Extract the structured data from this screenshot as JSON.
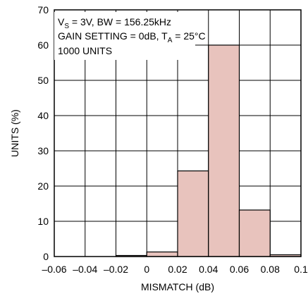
{
  "chart_data": {
    "type": "bar",
    "title": "",
    "xlabel": "MISMATCH (dB)",
    "ylabel": "UNITS (%)",
    "xlim": [
      -0.06,
      0.1
    ],
    "ylim": [
      0,
      70
    ],
    "grid": true,
    "bar_width": 0.02,
    "colors": {
      "bar_fill": "#e8c3bd",
      "bar_stroke": "#000000",
      "grid": "#000000"
    },
    "x": [
      -0.03,
      -0.01,
      0.01,
      0.03,
      0.05,
      0.07,
      0.09
    ],
    "values": [
      0,
      0.3,
      1.3,
      24.3,
      60,
      13.2,
      0.5
    ],
    "x_ticks": [
      -0.06,
      -0.04,
      -0.02,
      0,
      0.02,
      0.04,
      0.06,
      0.08,
      0.1
    ],
    "x_tick_labels": [
      "–0.06",
      "–0.04",
      "–0.02",
      "0",
      "0.02",
      "0.04",
      "0.06",
      "0.08",
      "0.1"
    ],
    "y_ticks": [
      0,
      10,
      20,
      30,
      40,
      50,
      60,
      70
    ],
    "y_tick_labels": [
      "0",
      "10",
      "20",
      "30",
      "40",
      "50",
      "60",
      "70"
    ],
    "annotations": {
      "line1_v": "V",
      "line1_sub": "S",
      "line1_rest": " = 3V, BW = 156.25kHz",
      "line2_main": "GAIN SETTING = 0dB, T",
      "line2_sub": "A",
      "line2_rest": " = 25°C",
      "line3": "1000 UNITS"
    }
  }
}
